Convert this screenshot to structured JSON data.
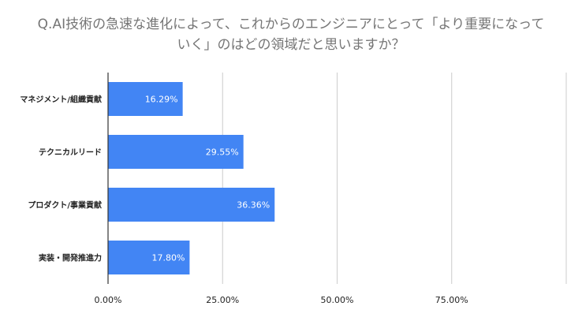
{
  "chart_data": {
    "type": "bar",
    "orientation": "horizontal",
    "title_lines": [
      "Q.AI技術の急速な進化によって、これからのエンジニアにとって「より重要になって",
      "いく」のはどの領域だと思いますか？"
    ],
    "categories": [
      "マネジメント/組織貢献",
      "テクニカルリード",
      "プロダクト/事業貢献",
      "実装・開発推進力"
    ],
    "values": [
      16.29,
      29.55,
      36.36,
      17.8
    ],
    "data_labels": [
      "16.29%",
      "29.55%",
      "36.36%",
      "17.80%"
    ],
    "x_ticks": [
      0,
      25,
      50,
      75,
      100
    ],
    "x_tick_labels": [
      "0.00%",
      "25.00%",
      "50.00%",
      "75.00%",
      ""
    ],
    "xlim": [
      0,
      100
    ],
    "grid": true,
    "legend": "none",
    "colors": {
      "bar": "#4285f4",
      "grid": "#cccccc",
      "axis": "#333333",
      "title": "#757575",
      "label_text": "#222222",
      "data_label": "#ffffff"
    }
  }
}
